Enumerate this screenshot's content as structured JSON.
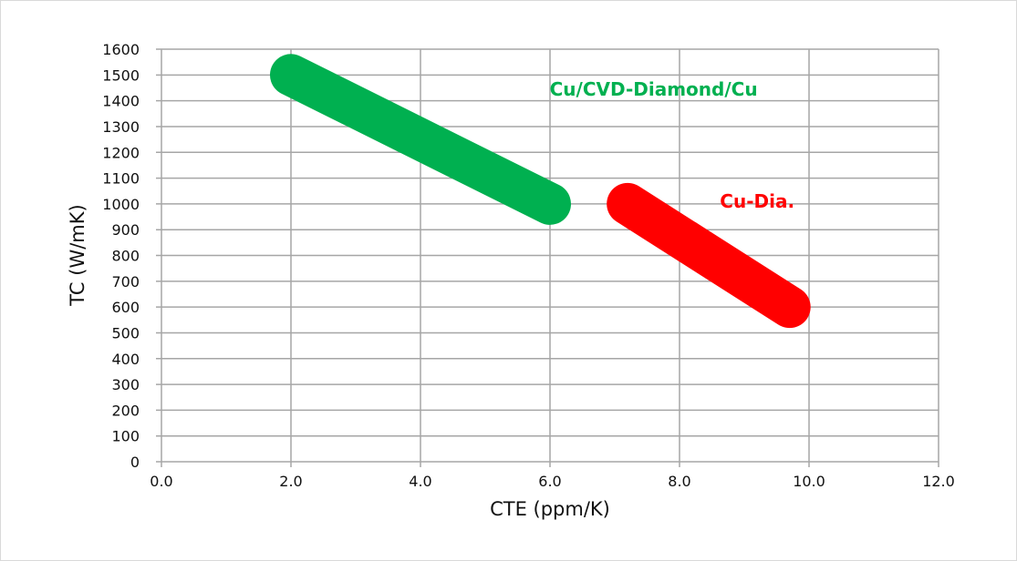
{
  "chart_data": {
    "type": "line",
    "title": "",
    "xlabel": "CTE (ppm/K)",
    "ylabel": "TC (W/mK)",
    "xlim": [
      0,
      12
    ],
    "ylim": [
      0,
      1600
    ],
    "xticks": [
      "0.0",
      "2.0",
      "4.0",
      "6.0",
      "8.0",
      "10.0",
      "12.0"
    ],
    "yticks": [
      "0",
      "100",
      "200",
      "300",
      "400",
      "500",
      "600",
      "700",
      "800",
      "900",
      "1000",
      "1100",
      "1200",
      "1300",
      "1400",
      "1500",
      "1600"
    ],
    "grid": true,
    "series": [
      {
        "name": "Cu/CVD-Diamond/Cu",
        "color": "#00b050",
        "x": [
          2.0,
          6.0
        ],
        "y": [
          1500,
          1000
        ]
      },
      {
        "name": "Cu-Dia.",
        "color": "#ff0000",
        "x": [
          7.2,
          9.7
        ],
        "y": [
          1000,
          600
        ]
      }
    ],
    "annotations": [
      {
        "text": "Cu/CVD-Diamond/Cu",
        "color": "#00b050",
        "x": 7.6,
        "y": 1420
      },
      {
        "text": "Cu-Dia.",
        "color": "#ff0000",
        "x": 9.2,
        "y": 985
      }
    ]
  }
}
